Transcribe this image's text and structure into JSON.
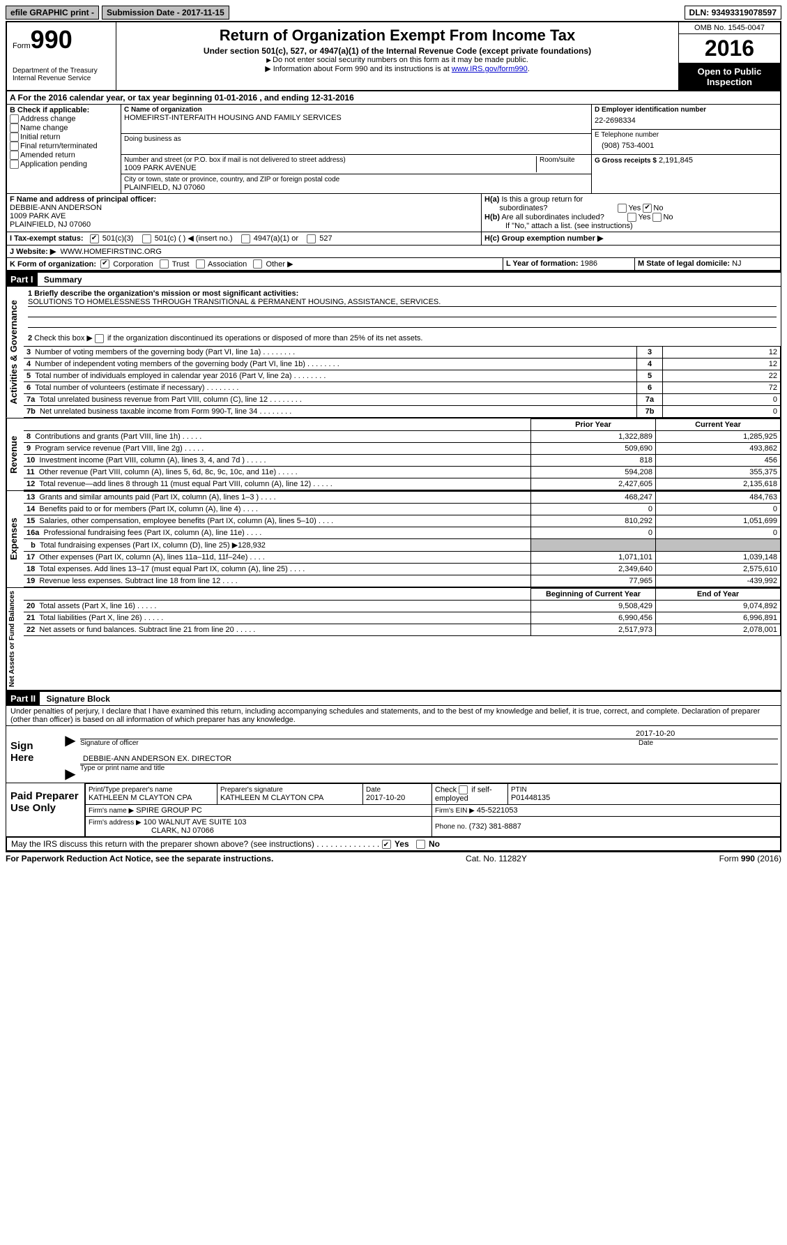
{
  "topbar": {
    "efile": "efile GRAPHIC print -",
    "submission_label": "Submission Date -",
    "submission_date": "2017-11-15",
    "dln_label": "DLN:",
    "dln": "93493319078597"
  },
  "header": {
    "form_label": "Form",
    "form_number": "990",
    "dept": "Department of the Treasury",
    "irs": "Internal Revenue Service",
    "title": "Return of Organization Exempt From Income Tax",
    "subtitle": "Under section 501(c), 527, or 4947(a)(1) of the Internal Revenue Code (except private foundations)",
    "note1": "Do not enter social security numbers on this form as it may be made public.",
    "note2_prefix": "Information about Form 990 and its instructions is at ",
    "note2_link": "www.IRS.gov/form990",
    "omb": "OMB No. 1545-0047",
    "year": "2016",
    "open": "Open to Public Inspection"
  },
  "sectionA": {
    "line": "A  For the 2016 calendar year, or tax year beginning 01-01-2016   , and ending 12-31-2016",
    "b_label": "B Check if applicable:",
    "b_opts": [
      "Address change",
      "Name change",
      "Initial return",
      "Final return/terminated",
      "Amended return",
      "Application pending"
    ],
    "c_name_label": "C Name of organization",
    "c_name": "HOMEFIRST-INTERFAITH HOUSING AND FAMILY SERVICES",
    "c_dba_label": "Doing business as",
    "c_addr_label": "Number and street (or P.O. box if mail is not delivered to street address)",
    "c_addr": "1009 PARK AVENUE",
    "c_room_label": "Room/suite",
    "c_city_label": "City or town, state or province, country, and ZIP or foreign postal code",
    "c_city": "PLAINFIELD, NJ  07060",
    "d_label": "D Employer identification number",
    "d_val": "22-2698334",
    "e_label": "E Telephone number",
    "e_val": "(908) 753-4001",
    "g_label": "G Gross receipts $",
    "g_val": "2,191,845",
    "f_label": "F  Name and address of principal officer:",
    "f_name": "DEBBIE-ANN ANDERSON",
    "f_addr1": "1009 PARK AVE",
    "f_addr2": "PLAINFIELD, NJ  07060",
    "ha_label": "H(a) Is this a group return for subordinates?",
    "hb_label": "H(b) Are all subordinates included?",
    "hb_note": "If \"No,\" attach a list. (see instructions)",
    "hc_label": "H(c) Group exemption number ▶",
    "yes": "Yes",
    "no": "No",
    "i_label": "I  Tax-exempt status:",
    "i_501c3": "501(c)(3)",
    "i_501c": "501(c) (   ) ◀ (insert no.)",
    "i_4947": "4947(a)(1) or",
    "i_527": "527",
    "j_label": "J  Website: ▶",
    "j_val": "WWW.HOMEFIRSTINC.ORG",
    "k_label": "K Form of organization:",
    "k_corp": "Corporation",
    "k_trust": "Trust",
    "k_assoc": "Association",
    "k_other": "Other ▶",
    "l_label": "L Year of formation:",
    "l_val": "1986",
    "m_label": "M State of legal domicile:",
    "m_val": "NJ"
  },
  "part1": {
    "title": "Part I",
    "subtitle": "Summary",
    "gov_label": "Activities & Governance",
    "rev_label": "Revenue",
    "exp_label": "Expenses",
    "net_label": "Net Assets or Fund Balances",
    "line1_label": "1 Briefly describe the organization's mission or most significant activities:",
    "line1_val": "SOLUTIONS TO HOMELESSNESS THROUGH TRANSITIONAL & PERMANENT HOUSING, ASSISTANCE, SERVICES.",
    "line2": "2  Check this box ▶       if the organization discontinued its operations or disposed of more than 25% of its net assets.",
    "lines_gov": [
      {
        "n": "3",
        "desc": "Number of voting members of the governing body (Part VI, line 1a)",
        "val": "12"
      },
      {
        "n": "4",
        "desc": "Number of independent voting members of the governing body (Part VI, line 1b)",
        "val": "12"
      },
      {
        "n": "5",
        "desc": "Total number of individuals employed in calendar year 2016 (Part V, line 2a)",
        "val": "22"
      },
      {
        "n": "6",
        "desc": "Total number of volunteers (estimate if necessary)",
        "val": "72"
      },
      {
        "n": "7a",
        "desc": "Total unrelated business revenue from Part VIII, column (C), line 12",
        "val": "0"
      },
      {
        "n": "7b",
        "desc": "Net unrelated business taxable income from Form 990-T, line 34",
        "pre": "b",
        "val": "0"
      }
    ],
    "prior_hdr": "Prior Year",
    "current_hdr": "Current Year",
    "lines_rev": [
      {
        "n": "8",
        "desc": "Contributions and grants (Part VIII, line 1h)",
        "p": "1,322,889",
        "c": "1,285,925"
      },
      {
        "n": "9",
        "desc": "Program service revenue (Part VIII, line 2g)",
        "p": "509,690",
        "c": "493,862"
      },
      {
        "n": "10",
        "desc": "Investment income (Part VIII, column (A), lines 3, 4, and 7d )",
        "p": "818",
        "c": "456"
      },
      {
        "n": "11",
        "desc": "Other revenue (Part VIII, column (A), lines 5, 6d, 8c, 9c, 10c, and 11e)",
        "p": "594,208",
        "c": "355,375"
      },
      {
        "n": "12",
        "desc": "Total revenue—add lines 8 through 11 (must equal Part VIII, column (A), line 12)",
        "p": "2,427,605",
        "c": "2,135,618"
      }
    ],
    "lines_exp": [
      {
        "n": "13",
        "desc": "Grants and similar amounts paid (Part IX, column (A), lines 1–3 )",
        "p": "468,247",
        "c": "484,763"
      },
      {
        "n": "14",
        "desc": "Benefits paid to or for members (Part IX, column (A), line 4)",
        "p": "0",
        "c": "0"
      },
      {
        "n": "15",
        "desc": "Salaries, other compensation, employee benefits (Part IX, column (A), lines 5–10)",
        "p": "810,292",
        "c": "1,051,699"
      },
      {
        "n": "16a",
        "desc": "Professional fundraising fees (Part IX, column (A), line 11e)",
        "p": "0",
        "c": "0"
      },
      {
        "n": "b",
        "desc": "Total fundraising expenses (Part IX, column (D), line 25) ▶128,932",
        "gray": true
      },
      {
        "n": "17",
        "desc": "Other expenses (Part IX, column (A), lines 11a–11d, 11f–24e)",
        "p": "1,071,101",
        "c": "1,039,148"
      },
      {
        "n": "18",
        "desc": "Total expenses. Add lines 13–17 (must equal Part IX, column (A), line 25)",
        "p": "2,349,640",
        "c": "2,575,610"
      },
      {
        "n": "19",
        "desc": "Revenue less expenses. Subtract line 18 from line 12",
        "p": "77,965",
        "c": "-439,992"
      }
    ],
    "begin_hdr": "Beginning of Current Year",
    "end_hdr": "End of Year",
    "lines_net": [
      {
        "n": "20",
        "desc": "Total assets (Part X, line 16)",
        "p": "9,508,429",
        "c": "9,074,892"
      },
      {
        "n": "21",
        "desc": "Total liabilities (Part X, line 26)",
        "p": "6,990,456",
        "c": "6,996,891"
      },
      {
        "n": "22",
        "desc": "Net assets or fund balances. Subtract line 21 from line 20",
        "p": "2,517,973",
        "c": "2,078,001"
      }
    ]
  },
  "part2": {
    "title": "Part II",
    "subtitle": "Signature Block",
    "perjury": "Under penalties of perjury, I declare that I have examined this return, including accompanying schedules and statements, and to the best of my knowledge and belief, it is true, correct, and complete. Declaration of preparer (other than officer) is based on all information of which preparer has any knowledge.",
    "sign_here": "Sign Here",
    "sig_officer_label": "Signature of officer",
    "sig_date": "2017-10-20",
    "date_label": "Date",
    "officer_name": "DEBBIE-ANN ANDERSON EX. DIRECTOR",
    "officer_name_label": "Type or print name and title",
    "paid_label": "Paid Preparer Use Only",
    "prep_name_label": "Print/Type preparer's name",
    "prep_name": "KATHLEEN M CLAYTON CPA",
    "prep_sig_label": "Preparer's signature",
    "prep_sig": "KATHLEEN M CLAYTON CPA",
    "prep_date_label": "Date",
    "prep_date": "2017-10-20",
    "self_emp_label": "Check       if self-employed",
    "ptin_label": "PTIN",
    "ptin": "P01448135",
    "firm_name_label": "Firm's name    ▶",
    "firm_name": "SPIRE GROUP PC",
    "firm_ein_label": "Firm's EIN ▶",
    "firm_ein": "45-5221053",
    "firm_addr_label": "Firm's address ▶",
    "firm_addr": "100 WALNUT AVE SUITE 103",
    "firm_city": "CLARK, NJ  07066",
    "firm_phone_label": "Phone no.",
    "firm_phone": "(732) 381-8887",
    "discuss": "May the IRS discuss this return with the preparer shown above? (see instructions)"
  },
  "footer": {
    "paperwork": "For Paperwork Reduction Act Notice, see the separate instructions.",
    "cat": "Cat. No. 11282Y",
    "form": "Form 990 (2016)"
  }
}
